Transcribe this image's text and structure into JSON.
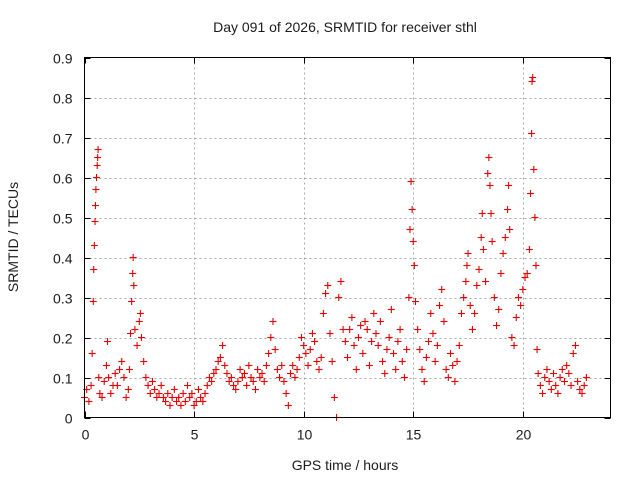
{
  "chart_data": {
    "type": "scatter",
    "title": "Day 091 of 2026, SRMTID for receiver sthl",
    "xlabel": "GPS time / hours",
    "ylabel": "SRMTID / TECUs",
    "xlim": [
      0,
      24
    ],
    "ylim": [
      0,
      0.9
    ],
    "xticks": [
      0,
      5,
      10,
      15,
      20
    ],
    "xtick_labels": [
      "0",
      "5",
      "10",
      "15",
      "20"
    ],
    "yticks": [
      0,
      0.1,
      0.2,
      0.3,
      0.4,
      0.5,
      0.6,
      0.7,
      0.8,
      0.9
    ],
    "ytick_labels": [
      "0",
      "0.1",
      "0.2",
      "0.3",
      "0.4",
      "0.5",
      "0.6",
      "0.7",
      "0.8",
      "0.9"
    ],
    "grid": true,
    "marker": "plus",
    "colors": {
      "series": "#e60000",
      "grid": "#a8a8a8",
      "axis": "#000000"
    },
    "series": [
      {
        "name": "SRMTID",
        "points": [
          [
            0.0,
            0.05
          ],
          [
            0.1,
            0.07
          ],
          [
            0.2,
            0.04
          ],
          [
            0.3,
            0.08
          ],
          [
            0.35,
            0.16
          ],
          [
            0.4,
            0.29
          ],
          [
            0.42,
            0.37
          ],
          [
            0.45,
            0.43
          ],
          [
            0.48,
            0.49
          ],
          [
            0.5,
            0.53
          ],
          [
            0.52,
            0.57
          ],
          [
            0.55,
            0.6
          ],
          [
            0.58,
            0.63
          ],
          [
            0.6,
            0.65
          ],
          [
            0.62,
            0.67
          ],
          [
            0.65,
            0.1
          ],
          [
            0.7,
            0.06
          ],
          [
            0.8,
            0.05
          ],
          [
            0.9,
            0.09
          ],
          [
            1.0,
            0.13
          ],
          [
            1.05,
            0.19
          ],
          [
            1.1,
            0.1
          ],
          [
            1.2,
            0.06
          ],
          [
            1.3,
            0.08
          ],
          [
            1.4,
            0.11
          ],
          [
            1.5,
            0.08
          ],
          [
            1.6,
            0.12
          ],
          [
            1.7,
            0.14
          ],
          [
            1.8,
            0.1
          ],
          [
            1.9,
            0.05
          ],
          [
            2.0,
            0.07
          ],
          [
            2.05,
            0.12
          ],
          [
            2.1,
            0.21
          ],
          [
            2.15,
            0.29
          ],
          [
            2.2,
            0.36
          ],
          [
            2.22,
            0.4
          ],
          [
            2.25,
            0.33
          ],
          [
            2.3,
            0.22
          ],
          [
            2.4,
            0.18
          ],
          [
            2.5,
            0.24
          ],
          [
            2.55,
            0.26
          ],
          [
            2.6,
            0.2
          ],
          [
            2.7,
            0.14
          ],
          [
            2.8,
            0.1
          ],
          [
            2.9,
            0.08
          ],
          [
            3.0,
            0.06
          ],
          [
            3.1,
            0.09
          ],
          [
            3.2,
            0.07
          ],
          [
            3.3,
            0.05
          ],
          [
            3.4,
            0.06
          ],
          [
            3.5,
            0.08
          ],
          [
            3.6,
            0.05
          ],
          [
            3.7,
            0.04
          ],
          [
            3.8,
            0.06
          ],
          [
            3.9,
            0.03
          ],
          [
            4.0,
            0.05
          ],
          [
            4.1,
            0.07
          ],
          [
            4.2,
            0.04
          ],
          [
            4.3,
            0.05
          ],
          [
            4.4,
            0.03
          ],
          [
            4.5,
            0.06
          ],
          [
            4.6,
            0.04
          ],
          [
            4.7,
            0.08
          ],
          [
            4.8,
            0.05
          ],
          [
            4.9,
            0.06
          ],
          [
            5.0,
            0.03
          ],
          [
            5.1,
            0.04
          ],
          [
            5.2,
            0.07
          ],
          [
            5.3,
            0.05
          ],
          [
            5.4,
            0.04
          ],
          [
            5.5,
            0.06
          ],
          [
            5.6,
            0.08
          ],
          [
            5.7,
            0.1
          ],
          [
            5.8,
            0.09
          ],
          [
            5.9,
            0.11
          ],
          [
            6.0,
            0.12
          ],
          [
            6.1,
            0.14
          ],
          [
            6.2,
            0.15
          ],
          [
            6.3,
            0.18
          ],
          [
            6.4,
            0.13
          ],
          [
            6.5,
            0.11
          ],
          [
            6.6,
            0.09
          ],
          [
            6.7,
            0.1
          ],
          [
            6.8,
            0.08
          ],
          [
            6.9,
            0.07
          ],
          [
            7.0,
            0.09
          ],
          [
            7.1,
            0.12
          ],
          [
            7.2,
            0.1
          ],
          [
            7.3,
            0.11
          ],
          [
            7.4,
            0.08
          ],
          [
            7.5,
            0.13
          ],
          [
            7.6,
            0.1
          ],
          [
            7.7,
            0.09
          ],
          [
            7.8,
            0.07
          ],
          [
            7.9,
            0.12
          ],
          [
            8.0,
            0.1
          ],
          [
            8.1,
            0.11
          ],
          [
            8.2,
            0.09
          ],
          [
            8.3,
            0.13
          ],
          [
            8.4,
            0.16
          ],
          [
            8.5,
            0.2
          ],
          [
            8.6,
            0.24
          ],
          [
            8.7,
            0.17
          ],
          [
            8.8,
            0.12
          ],
          [
            8.9,
            0.1
          ],
          [
            9.0,
            0.13
          ],
          [
            9.1,
            0.09
          ],
          [
            9.2,
            0.06
          ],
          [
            9.3,
            0.03
          ],
          [
            9.4,
            0.11
          ],
          [
            9.5,
            0.13
          ],
          [
            9.6,
            0.1
          ],
          [
            9.7,
            0.12
          ],
          [
            9.8,
            0.15
          ],
          [
            9.9,
            0.2
          ],
          [
            10.0,
            0.18
          ],
          [
            10.1,
            0.16
          ],
          [
            10.2,
            0.13
          ],
          [
            10.3,
            0.17
          ],
          [
            10.4,
            0.21
          ],
          [
            10.5,
            0.19
          ],
          [
            10.6,
            0.14
          ],
          [
            10.7,
            0.12
          ],
          [
            10.8,
            0.15
          ],
          [
            10.9,
            0.26
          ],
          [
            11.0,
            0.31
          ],
          [
            11.1,
            0.33
          ],
          [
            11.2,
            0.21
          ],
          [
            11.3,
            0.14
          ],
          [
            11.4,
            0.05
          ],
          [
            11.5,
            0.0
          ],
          [
            11.6,
            0.3
          ],
          [
            11.7,
            0.34
          ],
          [
            11.8,
            0.22
          ],
          [
            11.9,
            0.19
          ],
          [
            12.0,
            0.15
          ],
          [
            12.1,
            0.22
          ],
          [
            12.2,
            0.25
          ],
          [
            12.3,
            0.18
          ],
          [
            12.4,
            0.12
          ],
          [
            12.5,
            0.2
          ],
          [
            12.6,
            0.23
          ],
          [
            12.7,
            0.16
          ],
          [
            12.8,
            0.24
          ],
          [
            12.9,
            0.22
          ],
          [
            13.0,
            0.13
          ],
          [
            13.1,
            0.19
          ],
          [
            13.2,
            0.26
          ],
          [
            13.3,
            0.21
          ],
          [
            13.4,
            0.18
          ],
          [
            13.5,
            0.24
          ],
          [
            13.6,
            0.14
          ],
          [
            13.7,
            0.11
          ],
          [
            13.8,
            0.17
          ],
          [
            13.9,
            0.2
          ],
          [
            14.0,
            0.27
          ],
          [
            14.1,
            0.16
          ],
          [
            14.2,
            0.12
          ],
          [
            14.3,
            0.19
          ],
          [
            14.4,
            0.22
          ],
          [
            14.5,
            0.14
          ],
          [
            14.6,
            0.1
          ],
          [
            14.7,
            0.17
          ],
          [
            14.8,
            0.3
          ],
          [
            14.85,
            0.47
          ],
          [
            14.9,
            0.59
          ],
          [
            14.95,
            0.52
          ],
          [
            15.0,
            0.44
          ],
          [
            15.05,
            0.38
          ],
          [
            15.1,
            0.29
          ],
          [
            15.2,
            0.22
          ],
          [
            15.3,
            0.17
          ],
          [
            15.4,
            0.12
          ],
          [
            15.5,
            0.09
          ],
          [
            15.6,
            0.15
          ],
          [
            15.7,
            0.19
          ],
          [
            15.8,
            0.26
          ],
          [
            15.9,
            0.21
          ],
          [
            16.0,
            0.14
          ],
          [
            16.1,
            0.18
          ],
          [
            16.2,
            0.28
          ],
          [
            16.3,
            0.32
          ],
          [
            16.4,
            0.24
          ],
          [
            16.5,
            0.12
          ],
          [
            16.6,
            0.1
          ],
          [
            16.7,
            0.16
          ],
          [
            16.8,
            0.13
          ],
          [
            16.9,
            0.09
          ],
          [
            17.0,
            0.14
          ],
          [
            17.1,
            0.18
          ],
          [
            17.2,
            0.26
          ],
          [
            17.3,
            0.3
          ],
          [
            17.4,
            0.34
          ],
          [
            17.45,
            0.38
          ],
          [
            17.5,
            0.41
          ],
          [
            17.6,
            0.28
          ],
          [
            17.7,
            0.22
          ],
          [
            17.8,
            0.26
          ],
          [
            17.9,
            0.33
          ],
          [
            18.0,
            0.37
          ],
          [
            18.1,
            0.45
          ],
          [
            18.15,
            0.51
          ],
          [
            18.2,
            0.42
          ],
          [
            18.3,
            0.34
          ],
          [
            18.4,
            0.61
          ],
          [
            18.45,
            0.65
          ],
          [
            18.5,
            0.58
          ],
          [
            18.55,
            0.51
          ],
          [
            18.6,
            0.44
          ],
          [
            18.7,
            0.3
          ],
          [
            18.8,
            0.23
          ],
          [
            18.9,
            0.27
          ],
          [
            19.0,
            0.36
          ],
          [
            19.1,
            0.41
          ],
          [
            19.2,
            0.45
          ],
          [
            19.3,
            0.52
          ],
          [
            19.35,
            0.58
          ],
          [
            19.4,
            0.47
          ],
          [
            19.5,
            0.2
          ],
          [
            19.6,
            0.18
          ],
          [
            19.7,
            0.25
          ],
          [
            19.8,
            0.3
          ],
          [
            19.9,
            0.28
          ],
          [
            20.0,
            0.32
          ],
          [
            20.1,
            0.35
          ],
          [
            20.2,
            0.36
          ],
          [
            20.3,
            0.42
          ],
          [
            20.35,
            0.56
          ],
          [
            20.4,
            0.71
          ],
          [
            20.42,
            0.84
          ],
          [
            20.45,
            0.85
          ],
          [
            20.5,
            0.62
          ],
          [
            20.55,
            0.5
          ],
          [
            20.6,
            0.38
          ],
          [
            20.65,
            0.17
          ],
          [
            20.7,
            0.11
          ],
          [
            20.8,
            0.08
          ],
          [
            20.9,
            0.06
          ],
          [
            21.0,
            0.1
          ],
          [
            21.1,
            0.12
          ],
          [
            21.2,
            0.09
          ],
          [
            21.3,
            0.07
          ],
          [
            21.4,
            0.11
          ],
          [
            21.5,
            0.08
          ],
          [
            21.6,
            0.06
          ],
          [
            21.7,
            0.1
          ],
          [
            21.8,
            0.12
          ],
          [
            21.9,
            0.09
          ],
          [
            22.0,
            0.13
          ],
          [
            22.1,
            0.11
          ],
          [
            22.2,
            0.08
          ],
          [
            22.3,
            0.16
          ],
          [
            22.4,
            0.18
          ],
          [
            22.5,
            0.09
          ],
          [
            22.6,
            0.07
          ],
          [
            22.7,
            0.06
          ],
          [
            22.8,
            0.08
          ],
          [
            22.9,
            0.1
          ]
        ]
      }
    ]
  }
}
